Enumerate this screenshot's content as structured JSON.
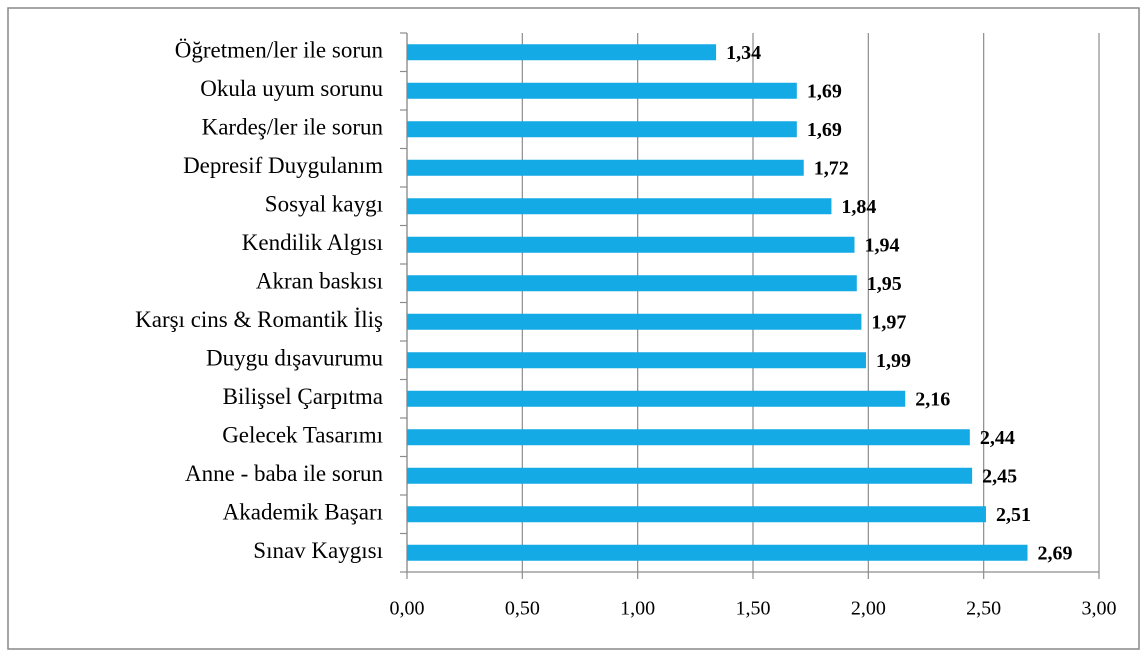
{
  "chart_data": {
    "type": "bar",
    "orientation": "horizontal",
    "categories": [
      "Öğretmen/ler ile sorun",
      "Okula uyum sorunu",
      "Kardeş/ler ile sorun",
      "Depresif Duygulanım",
      "Sosyal kaygı",
      "Kendilik Algısı",
      "Akran baskısı",
      "Karşı cins & Romantik İliş",
      "Duygu dışavurumu",
      "Bilişsel Çarpıtma",
      "Gelecek Tasarımı",
      "Anne - baba ile sorun",
      "Akademik Başarı",
      "Sınav Kaygısı"
    ],
    "values": [
      1.34,
      1.69,
      1.69,
      1.72,
      1.84,
      1.94,
      1.95,
      1.97,
      1.99,
      2.16,
      2.44,
      2.45,
      2.51,
      2.69
    ],
    "value_labels": [
      "1,34",
      "1,69",
      "1,69",
      "1,72",
      "1,84",
      "1,94",
      "1,95",
      "1,97",
      "1,99",
      "2,16",
      "2,44",
      "2,45",
      "2,51",
      "2,69"
    ],
    "color": "#13aae6",
    "xlim": [
      0,
      3
    ],
    "xticks": [
      {
        "value": 0,
        "label": "0,00"
      },
      {
        "value": 0.5,
        "label": "0,50"
      },
      {
        "value": 1,
        "label": "1,00"
      },
      {
        "value": 1.5,
        "label": "1,50"
      },
      {
        "value": 2,
        "label": "2,00"
      },
      {
        "value": 2.5,
        "label": "2,50"
      },
      {
        "value": 3,
        "label": "3,00"
      }
    ],
    "grid": true
  }
}
